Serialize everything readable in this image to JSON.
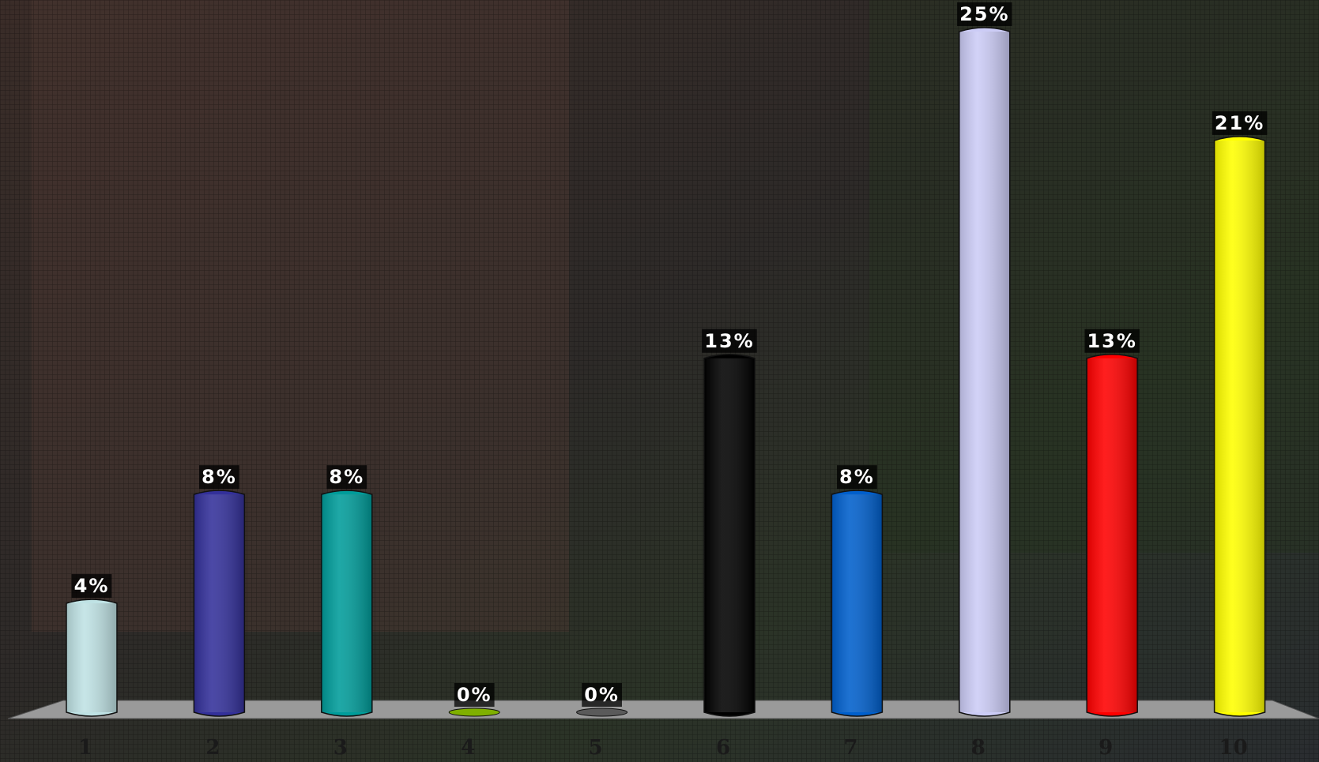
{
  "chart_data": {
    "type": "bar",
    "categories": [
      "1",
      "2",
      "3",
      "4",
      "5",
      "6",
      "7",
      "8",
      "9",
      "10"
    ],
    "values": [
      4,
      8,
      8,
      0,
      0,
      13,
      8,
      25,
      13,
      21
    ],
    "value_labels": [
      "4%",
      "8%",
      "8%",
      "0%",
      "0%",
      "13%",
      "8%",
      "25%",
      "13%",
      "21%"
    ],
    "colors": [
      "#bfe2e4",
      "#33309a",
      "#009c9a",
      "#7fb000",
      "#5a5a5a",
      "#000000",
      "#005fcc",
      "#ccccf6",
      "#ff0000",
      "#ffff00"
    ]
  }
}
